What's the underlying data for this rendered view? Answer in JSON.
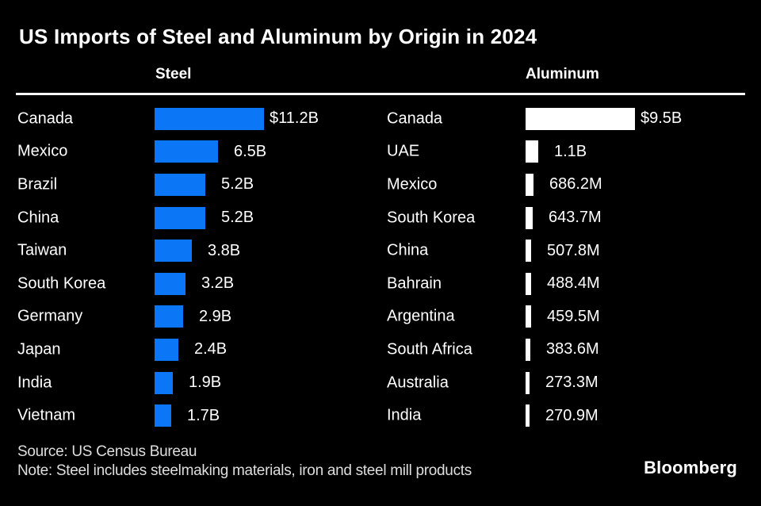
{
  "title": "US Imports of Steel and Aluminum by Origin in 2024",
  "colors": {
    "background": "#000000",
    "text": "#ffffff",
    "footer_text": "#dedede",
    "steel_bar": "#0b77f6",
    "aluminum_bar": "#ffffff",
    "header_rule": "#ffffff"
  },
  "chart_data": [
    {
      "type": "bar",
      "title": "Steel",
      "orientation": "horizontal",
      "unit": "USD billions",
      "categories": [
        "Canada",
        "Mexico",
        "Brazil",
        "China",
        "Taiwan",
        "South Korea",
        "Germany",
        "Japan",
        "India",
        "Vietnam"
      ],
      "values": [
        11.2,
        6.5,
        5.2,
        5.2,
        3.8,
        3.2,
        2.9,
        2.4,
        1.9,
        1.7
      ],
      "value_labels": [
        "$11.2B",
        "6.5B",
        "5.2B",
        "5.2B",
        "3.8B",
        "3.2B",
        "2.9B",
        "2.4B",
        "1.9B",
        "1.7B"
      ],
      "max_value": 11.2,
      "bar_color": "#0b77f6",
      "legend_position": "none",
      "grid": false
    },
    {
      "type": "bar",
      "title": "Aluminum",
      "orientation": "horizontal",
      "unit": "USD billions",
      "categories": [
        "Canada",
        "UAE",
        "Mexico",
        "South Korea",
        "China",
        "Bahrain",
        "Argentina",
        "South Africa",
        "Australia",
        "India"
      ],
      "values": [
        9.5,
        1.1,
        0.6862,
        0.6437,
        0.5078,
        0.4884,
        0.4595,
        0.3836,
        0.2733,
        0.2709
      ],
      "value_labels": [
        "$9.5B",
        "1.1B",
        "686.2M",
        "643.7M",
        "507.8M",
        "488.4M",
        "459.5M",
        "383.6M",
        "273.3M",
        "270.9M"
      ],
      "max_value": 9.5,
      "bar_color": "#ffffff",
      "legend_position": "none",
      "grid": false
    }
  ],
  "footer": {
    "source": "Source: US Census Bureau",
    "note": "Note: Steel includes steelmaking materials, iron and steel mill products",
    "brand": "Bloomberg"
  }
}
